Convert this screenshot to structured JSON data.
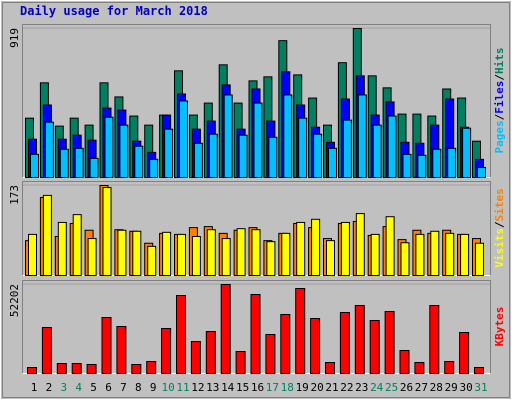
{
  "title": "Daily usage for March 2018",
  "legend_separator": "/",
  "chart_data": [
    {
      "type": "bar",
      "categories": [
        "1",
        "2",
        "3",
        "4",
        "5",
        "6",
        "7",
        "8",
        "9",
        "10",
        "11",
        "12",
        "13",
        "14",
        "15",
        "16",
        "17",
        "18",
        "19",
        "20",
        "21",
        "22",
        "23",
        "24",
        "25",
        "26",
        "27",
        "28",
        "29",
        "30",
        "31"
      ],
      "ylim": [
        0,
        919
      ],
      "yticks": [
        919
      ],
      "series": [
        {
          "name": "Hits",
          "color": "#008060",
          "values": [
            366,
            584,
            317,
            366,
            323,
            584,
            497,
            379,
            323,
            385,
            658,
            385,
            459,
            695,
            459,
            596,
            621,
            844,
            633,
            490,
            323,
            708,
            919,
            627,
            553,
            391,
            391,
            379,
            546,
            490,
            224
          ]
        },
        {
          "name": "Files",
          "color": "#0000ff",
          "values": [
            236,
            447,
            236,
            261,
            230,
            428,
            416,
            224,
            155,
            385,
            515,
            298,
            348,
            571,
            298,
            546,
            348,
            652,
            447,
            310,
            217,
            484,
            627,
            385,
            466,
            217,
            211,
            323,
            484,
            310,
            112
          ]
        },
        {
          "name": "Pages",
          "color": "#00c0ff",
          "values": [
            143,
            341,
            174,
            180,
            118,
            372,
            323,
            193,
            112,
            298,
            472,
            211,
            267,
            509,
            261,
            459,
            248,
            509,
            366,
            267,
            180,
            354,
            509,
            323,
            379,
            143,
            137,
            174,
            180,
            304,
            62
          ]
        }
      ]
    },
    {
      "type": "bar",
      "categories": [
        "1",
        "2",
        "3",
        "4",
        "5",
        "6",
        "7",
        "8",
        "9",
        "10",
        "11",
        "12",
        "13",
        "14",
        "15",
        "16",
        "17",
        "18",
        "19",
        "20",
        "21",
        "22",
        "23",
        "24",
        "25",
        "26",
        "27",
        "28",
        "29",
        "30",
        "31"
      ],
      "ylim": [
        0,
        173
      ],
      "yticks": [
        173
      ],
      "series": [
        {
          "name": "Sites",
          "color": "#ff8000",
          "values": [
            67,
            150,
            75,
            100,
            87,
            173,
            88,
            85,
            62,
            81,
            79,
            92,
            94,
            81,
            87,
            92,
            67,
            81,
            100,
            92,
            71,
            100,
            104,
            77,
            94,
            69,
            87,
            81,
            87,
            79,
            71
          ]
        },
        {
          "name": "Visits",
          "color": "#ffff00",
          "values": [
            79,
            154,
            102,
            117,
            71,
            169,
            87,
            85,
            56,
            83,
            79,
            75,
            88,
            71,
            90,
            88,
            65,
            81,
            102,
            108,
            67,
            102,
            119,
            79,
            113,
            63,
            79,
            85,
            81,
            79,
            62
          ]
        }
      ]
    },
    {
      "type": "bar",
      "categories": [
        "1",
        "2",
        "3",
        "4",
        "5",
        "6",
        "7",
        "8",
        "9",
        "10",
        "11",
        "12",
        "13",
        "14",
        "15",
        "16",
        "17",
        "18",
        "19",
        "20",
        "21",
        "22",
        "23",
        "24",
        "25",
        "26",
        "27",
        "28",
        "29",
        "30",
        "31"
      ],
      "category_colors": [
        "#000000",
        "#000000",
        "#008060",
        "#008060",
        "#000000",
        "#000000",
        "#000000",
        "#000000",
        "#000000",
        "#008060",
        "#008060",
        "#000000",
        "#000000",
        "#000000",
        "#000000",
        "#000000",
        "#008060",
        "#008060",
        "#000000",
        "#000000",
        "#000000",
        "#000000",
        "#000000",
        "#008060",
        "#008060",
        "#000000",
        "#000000",
        "#000000",
        "#000000",
        "#000000",
        "#008060"
      ],
      "ylim": [
        0,
        52202
      ],
      "yticks": [
        52202
      ],
      "series": [
        {
          "name": "KBytes",
          "color": "#ff0000",
          "values": [
            3519,
            26980,
            5865,
            5865,
            5279,
            32846,
            27566,
            5279,
            7039,
            26394,
            45750,
            18769,
            24634,
            52202,
            12904,
            46336,
            22874,
            34606,
            49856,
            32260,
            6452,
            35779,
            39884,
            31087,
            36365,
            13490,
            6452,
            39884,
            7039,
            24047,
            3519
          ]
        }
      ]
    }
  ]
}
